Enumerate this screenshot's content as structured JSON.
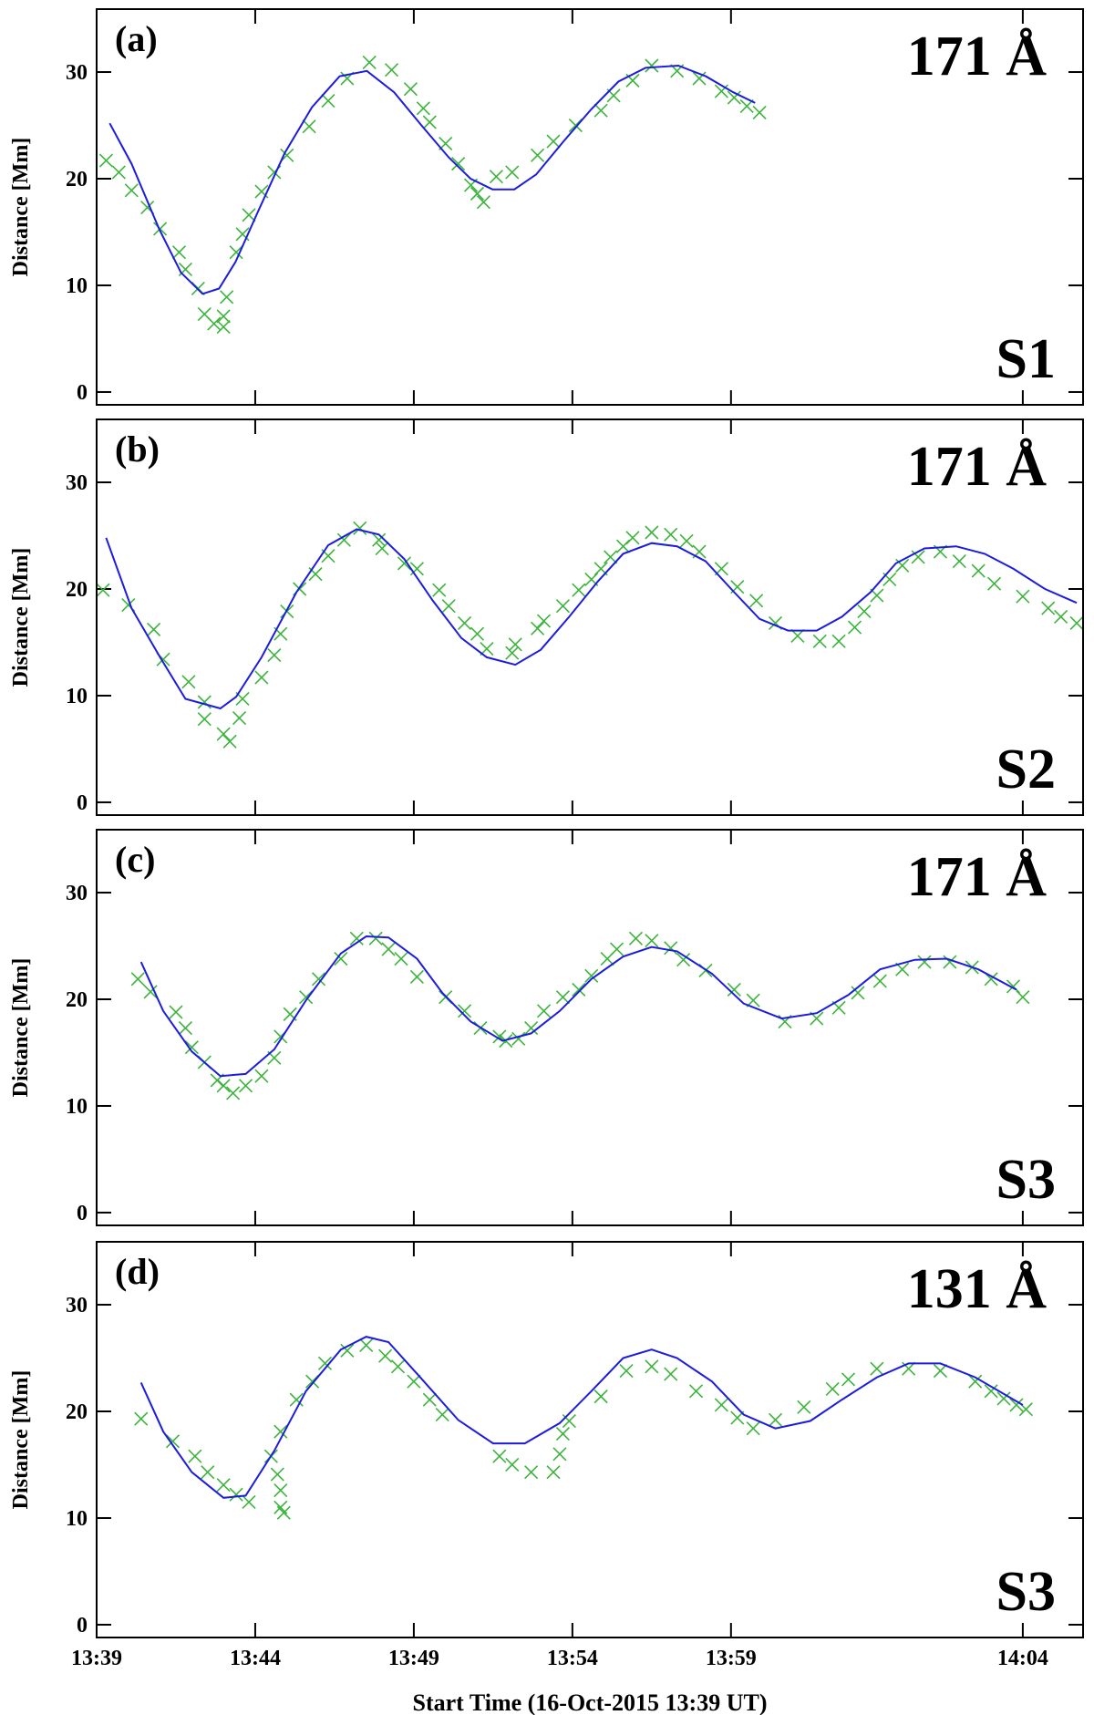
{
  "chart_data": [
    {
      "type": "scatter",
      "panel_label": "(a)",
      "wavelength": "171 Å",
      "slit": "S1",
      "ylabel": "Distance [Mm]",
      "xlim": [
        0,
        31.1
      ],
      "xticks": [
        0,
        5,
        10,
        15,
        20,
        29.2
      ],
      "ylim": [
        -1.2,
        35.9
      ],
      "yticks": [
        0,
        10,
        20,
        30
      ],
      "series": [
        {
          "mode": "markers",
          "marker": "x",
          "color": "#3cb43c",
          "x": [
            0.3,
            0.7,
            1.1,
            1.6,
            2.0,
            2.6,
            2.8,
            3.2,
            3.4,
            3.7,
            4.0,
            4.0,
            4.1,
            4.4,
            4.6,
            4.8,
            5.2,
            5.6,
            6.0,
            6.7,
            7.3,
            7.9,
            8.6,
            9.3,
            9.9,
            10.3,
            10.5,
            11.0,
            11.4,
            11.8,
            12.0,
            12.2,
            12.6,
            13.1,
            13.9,
            14.4,
            15.1,
            15.9,
            16.3,
            16.9,
            17.5,
            18.3,
            19.0,
            19.7,
            20.1,
            20.5,
            20.9
          ],
          "values": [
            21.7,
            20.6,
            18.9,
            17.3,
            15.3,
            13.1,
            11.5,
            9.7,
            7.3,
            6.4,
            6.1,
            7.1,
            8.9,
            13.1,
            14.8,
            16.6,
            18.8,
            20.6,
            22.2,
            24.9,
            27.3,
            29.4,
            30.9,
            30.2,
            28.4,
            26.6,
            25.3,
            23.3,
            21.4,
            19.4,
            18.6,
            17.8,
            20.2,
            20.6,
            22.2,
            23.5,
            25.0,
            26.4,
            27.8,
            29.2,
            30.6,
            30.1,
            29.4,
            28.2,
            27.6,
            26.8,
            26.2
          ]
        },
        {
          "mode": "lines",
          "color": "#1c1ce0",
          "x": [
            0.41,
            1.1,
            1.97,
            2.66,
            3.34,
            3.86,
            4.38,
            5.07,
            5.93,
            6.79,
            7.66,
            8.52,
            9.38,
            10.24,
            11.1,
            11.79,
            12.48,
            13.17,
            13.86,
            14.72,
            15.59,
            16.45,
            17.31,
            18.34,
            19.21,
            20.07,
            20.76
          ],
          "values": [
            25.2,
            21.4,
            15.3,
            11.2,
            9.2,
            9.7,
            12.2,
            16.8,
            22.4,
            26.7,
            29.6,
            30.1,
            28.1,
            25.0,
            22.0,
            20.0,
            19.0,
            19.0,
            20.4,
            23.5,
            26.5,
            29.1,
            30.4,
            30.6,
            29.6,
            28.1,
            27.1
          ]
        }
      ]
    },
    {
      "type": "scatter",
      "panel_label": "(b)",
      "wavelength": "171 Å",
      "slit": "S2",
      "ylabel": "Distance [Mm]",
      "xlim": [
        0,
        31.1
      ],
      "xticks": [
        0,
        5,
        10,
        15,
        20,
        29.2
      ],
      "ylim": [
        -1.2,
        35.9
      ],
      "yticks": [
        0,
        10,
        20,
        30
      ],
      "series": [
        {
          "mode": "markers",
          "marker": "x",
          "color": "#3cb43c",
          "x": [
            0.2,
            1.0,
            1.8,
            2.1,
            2.9,
            3.4,
            3.4,
            4.0,
            4.2,
            4.5,
            4.6,
            5.2,
            5.6,
            5.8,
            6.0,
            6.4,
            6.9,
            7.3,
            7.8,
            8.3,
            8.9,
            9.0,
            9.7,
            10.1,
            10.8,
            11.1,
            11.6,
            12.0,
            12.3,
            13.1,
            13.2,
            13.9,
            14.1,
            14.7,
            15.2,
            15.6,
            15.9,
            16.2,
            16.6,
            16.9,
            17.5,
            18.1,
            18.6,
            19.0,
            19.7,
            20.2,
            20.8,
            21.4,
            22.1,
            22.8,
            23.4,
            23.9,
            24.2,
            24.6,
            25.0,
            25.4,
            25.9,
            26.6,
            27.2,
            27.8,
            28.3,
            29.2,
            30.0,
            30.4,
            30.9
          ],
          "values": [
            19.9,
            18.5,
            16.2,
            13.4,
            11.3,
            9.4,
            7.8,
            6.4,
            5.7,
            7.9,
            9.7,
            11.7,
            13.8,
            15.8,
            17.9,
            20.0,
            21.4,
            23.1,
            24.6,
            25.7,
            24.6,
            23.8,
            22.4,
            21.9,
            19.9,
            18.4,
            16.8,
            15.8,
            14.4,
            14.0,
            14.8,
            16.3,
            17.0,
            18.4,
            19.9,
            20.9,
            21.9,
            23.0,
            24.0,
            24.8,
            25.3,
            25.1,
            24.5,
            23.5,
            21.9,
            20.2,
            18.9,
            16.8,
            15.6,
            15.1,
            15.1,
            16.4,
            17.9,
            19.4,
            20.9,
            22.2,
            23.0,
            23.5,
            22.6,
            21.7,
            20.5,
            19.3,
            18.2,
            17.4,
            16.8
          ]
        },
        {
          "mode": "lines",
          "color": "#1c1ce0",
          "x": [
            0.3,
            1.1,
            2.0,
            2.8,
            3.9,
            4.4,
            5.2,
            6.3,
            7.3,
            8.2,
            8.9,
            9.7,
            10.6,
            11.5,
            12.3,
            13.2,
            14.0,
            14.9,
            15.8,
            16.6,
            17.5,
            18.3,
            19.2,
            20.1,
            20.9,
            21.8,
            22.7,
            23.5,
            24.4,
            25.2,
            26.1,
            27.1,
            28.0,
            28.9,
            29.9,
            30.9
          ],
          "values": [
            24.8,
            18.2,
            13.6,
            9.7,
            8.8,
            9.9,
            13.6,
            19.7,
            24.1,
            25.6,
            25.1,
            22.8,
            18.9,
            15.4,
            13.6,
            12.9,
            14.3,
            17.4,
            20.7,
            23.3,
            24.3,
            24.0,
            22.6,
            19.7,
            17.2,
            16.1,
            16.1,
            17.4,
            19.7,
            22.4,
            23.8,
            24.0,
            23.3,
            21.9,
            20.0,
            18.7
          ]
        }
      ]
    },
    {
      "type": "scatter",
      "panel_label": "(c)",
      "wavelength": "171 Å",
      "slit": "S3",
      "ylabel": "Distance [Mm]",
      "xlim": [
        0,
        31.1
      ],
      "xticks": [
        0,
        5,
        10,
        15,
        20,
        29.2
      ],
      "ylim": [
        -1.2,
        35.9
      ],
      "yticks": [
        0,
        10,
        20,
        30
      ],
      "series": [
        {
          "mode": "markers",
          "marker": "x",
          "color": "#3cb43c",
          "x": [
            1.3,
            1.7,
            2.5,
            2.8,
            3.0,
            3.4,
            3.8,
            4.0,
            4.3,
            4.7,
            5.2,
            5.6,
            5.8,
            6.1,
            6.6,
            7.0,
            7.7,
            8.2,
            8.8,
            9.2,
            9.6,
            10.1,
            11.0,
            11.6,
            12.1,
            12.7,
            12.9,
            13.3,
            13.7,
            14.1,
            14.7,
            15.2,
            15.6,
            16.1,
            16.4,
            17.0,
            17.5,
            18.1,
            18.5,
            19.2,
            20.1,
            20.7,
            21.7,
            22.7,
            23.4,
            24.0,
            24.7,
            25.4,
            26.1,
            26.9,
            27.6,
            28.2,
            28.9,
            29.2
          ],
          "values": [
            21.9,
            20.7,
            18.8,
            17.3,
            15.5,
            14.1,
            12.4,
            11.9,
            11.2,
            11.9,
            12.8,
            14.5,
            16.5,
            18.6,
            20.2,
            21.9,
            23.8,
            25.7,
            25.7,
            24.7,
            23.8,
            22.1,
            20.2,
            18.9,
            17.3,
            16.5,
            16.1,
            16.3,
            17.3,
            18.9,
            20.2,
            20.9,
            22.2,
            23.8,
            24.7,
            25.7,
            25.5,
            24.8,
            23.7,
            22.7,
            20.9,
            19.9,
            17.9,
            18.2,
            19.2,
            20.6,
            21.7,
            22.8,
            23.5,
            23.5,
            23.0,
            21.9,
            21.2,
            20.2
          ]
        },
        {
          "mode": "lines",
          "color": "#1c1ce0",
          "x": [
            1.4,
            2.1,
            3.0,
            3.9,
            4.7,
            5.6,
            6.6,
            7.7,
            8.5,
            9.2,
            10.1,
            10.9,
            11.8,
            12.8,
            13.7,
            14.6,
            15.6,
            16.6,
            17.5,
            18.3,
            19.4,
            20.4,
            21.6,
            22.7,
            23.7,
            24.7,
            25.8,
            26.8,
            27.8,
            29.0
          ],
          "values": [
            23.5,
            18.9,
            15.1,
            12.8,
            13.0,
            15.3,
            19.9,
            24.3,
            25.9,
            25.8,
            23.8,
            20.6,
            17.9,
            16.1,
            16.8,
            18.9,
            21.9,
            24.0,
            24.9,
            24.5,
            22.4,
            19.6,
            18.2,
            18.7,
            20.4,
            22.8,
            23.7,
            23.8,
            22.8,
            20.9
          ]
        }
      ]
    },
    {
      "type": "scatter",
      "panel_label": "(d)",
      "wavelength": "131 Å",
      "slit": "S3",
      "ylabel": "Distance [Mm]",
      "xlabel": "Start Time (16-Oct-2015 13:39 UT)",
      "xlim": [
        0,
        31.1
      ],
      "xticks": [
        {
          "value": 0,
          "label": "13:39"
        },
        {
          "value": 5,
          "label": "13:44"
        },
        {
          "value": 10,
          "label": "13:49"
        },
        {
          "value": 15,
          "label": "13:54"
        },
        {
          "value": 20,
          "label": "13:59"
        },
        {
          "value": 29.2,
          "label": "14:04"
        }
      ],
      "ylim": [
        -1.2,
        35.9
      ],
      "yticks": [
        0,
        10,
        20,
        30
      ],
      "series": [
        {
          "mode": "markers",
          "marker": "x",
          "color": "#3cb43c",
          "x": [
            1.4,
            2.4,
            3.1,
            3.5,
            4.0,
            4.4,
            4.8,
            5.5,
            5.7,
            5.8,
            5.8,
            5.9,
            5.8,
            6.3,
            6.8,
            7.2,
            7.9,
            8.5,
            9.1,
            9.5,
            10.0,
            10.5,
            10.9,
            12.7,
            13.1,
            13.7,
            14.4,
            14.6,
            14.7,
            14.9,
            15.9,
            16.7,
            17.5,
            18.1,
            18.9,
            19.7,
            20.2,
            20.7,
            21.4,
            22.3,
            23.2,
            23.7,
            24.6,
            25.6,
            26.6,
            27.7,
            28.2,
            28.6,
            29.0,
            29.3
          ],
          "values": [
            19.3,
            17.2,
            15.8,
            14.3,
            13.1,
            12.2,
            11.5,
            15.8,
            14.1,
            12.6,
            11.0,
            10.5,
            18.1,
            21.1,
            22.8,
            24.5,
            25.7,
            26.2,
            25.2,
            24.2,
            22.8,
            21.1,
            19.7,
            15.8,
            15.0,
            14.3,
            14.3,
            16.0,
            17.9,
            19.1,
            21.4,
            23.8,
            24.2,
            23.5,
            21.9,
            20.6,
            19.4,
            18.4,
            19.2,
            20.4,
            22.1,
            23.0,
            24.0,
            24.0,
            23.8,
            22.8,
            21.9,
            21.2,
            20.6,
            20.2
          ]
        },
        {
          "mode": "lines",
          "color": "#1c1ce0",
          "x": [
            1.4,
            2.1,
            3.0,
            4.0,
            4.7,
            5.6,
            6.6,
            7.7,
            8.5,
            9.2,
            10.2,
            11.4,
            12.5,
            13.5,
            14.6,
            15.6,
            16.6,
            17.5,
            18.3,
            19.4,
            20.4,
            21.4,
            22.5,
            23.5,
            24.6,
            25.6,
            26.6,
            27.7,
            29.2
          ],
          "values": [
            22.7,
            18.1,
            14.3,
            11.9,
            12.1,
            16.3,
            21.9,
            25.8,
            27.0,
            26.5,
            23.2,
            19.2,
            17.0,
            17.0,
            18.9,
            21.9,
            25.0,
            25.8,
            25.0,
            22.8,
            19.7,
            18.4,
            19.1,
            21.1,
            23.2,
            24.5,
            24.5,
            23.2,
            20.6
          ]
        }
      ]
    }
  ]
}
